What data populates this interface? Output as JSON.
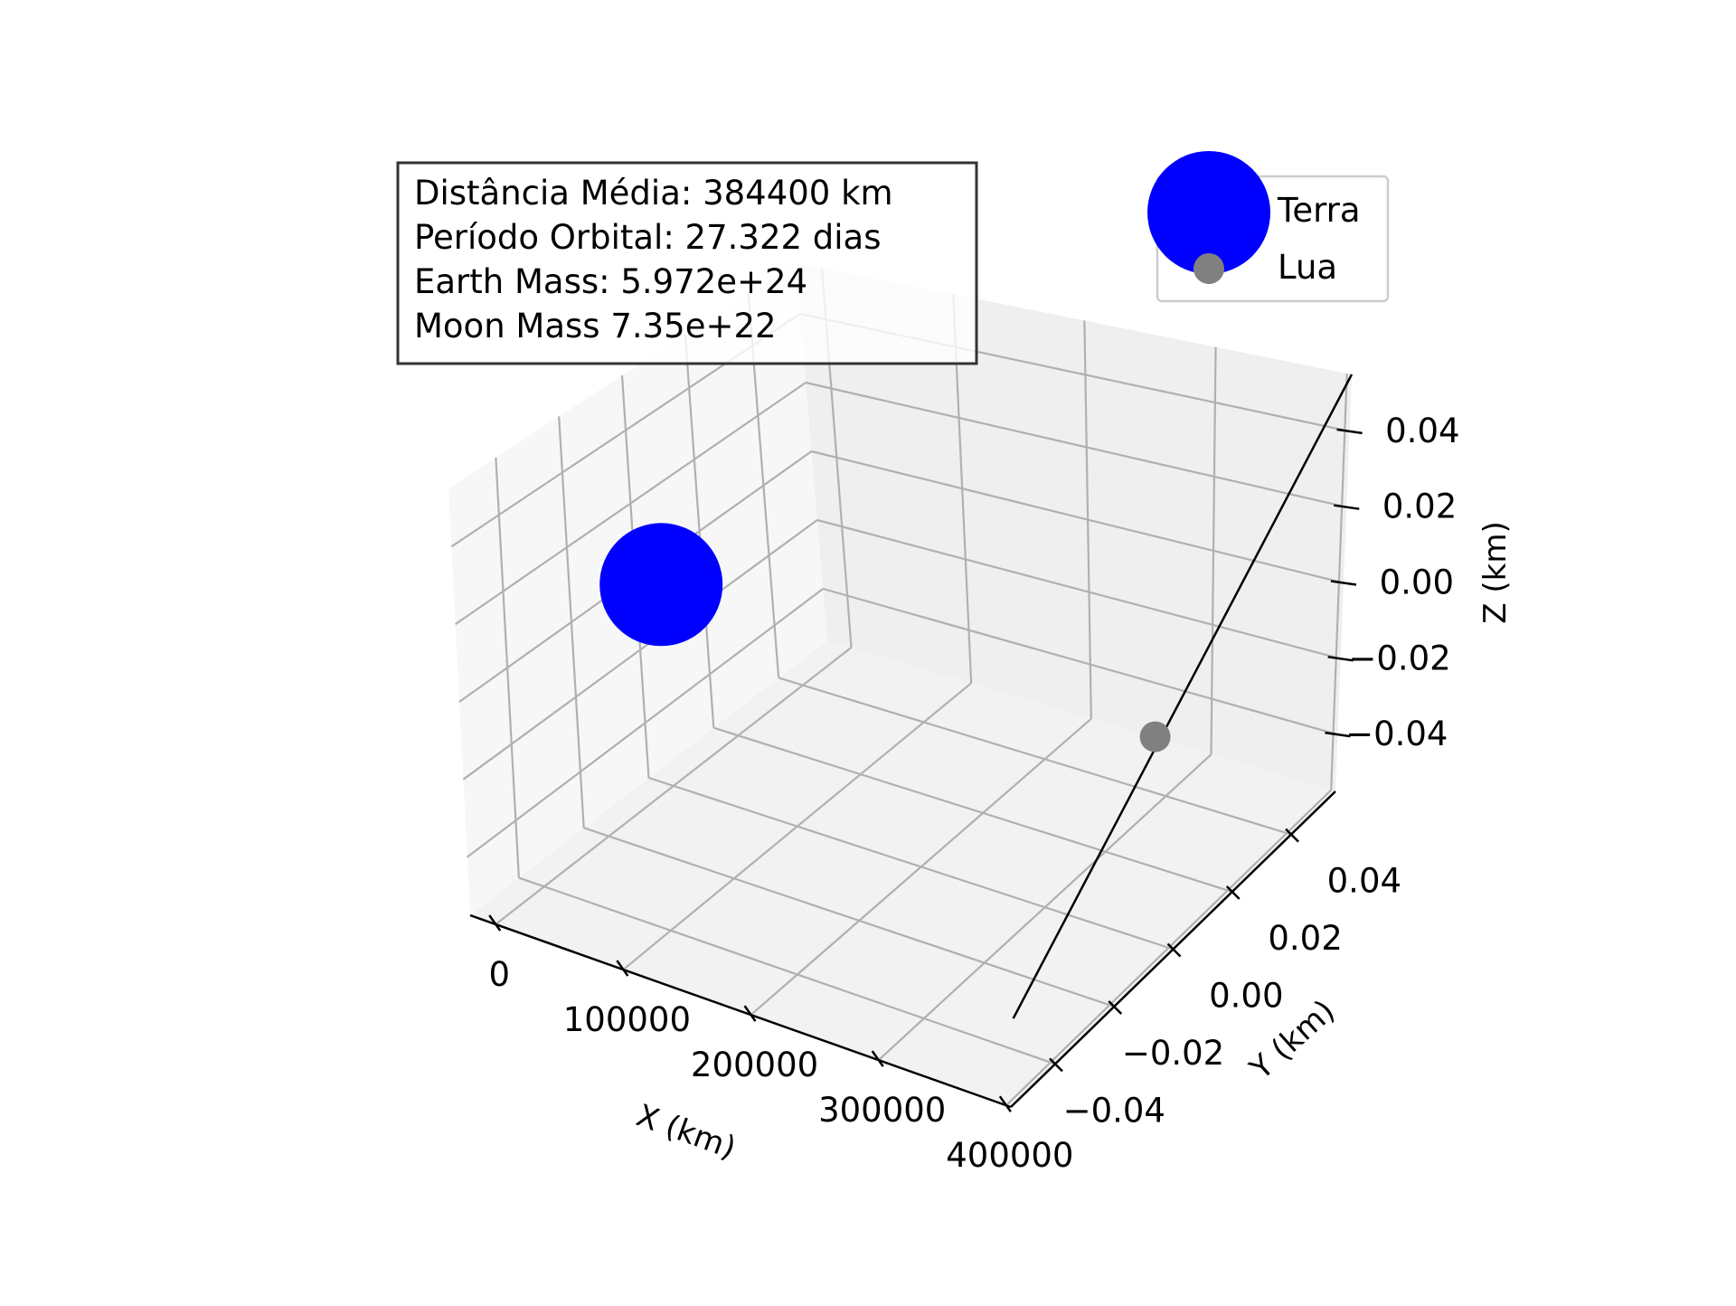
{
  "chart_data": {
    "type": "scatter",
    "projection": "3d",
    "xlabel": "X (km)",
    "ylabel": "Y (km)",
    "zlabel": "Z (km)",
    "xlim": [
      -20000,
      403640
    ],
    "ylim": [
      -0.055,
      0.055
    ],
    "zlim": [
      -0.055,
      0.055
    ],
    "x_ticks": [
      0,
      100000,
      200000,
      300000,
      400000
    ],
    "y_ticks": [
      -0.04,
      -0.02,
      0.0,
      0.02,
      0.04
    ],
    "z_ticks": [
      -0.04,
      -0.02,
      0.0,
      0.02,
      0.04
    ],
    "x_tick_labels": [
      "0",
      "100000",
      "200000",
      "300000",
      "400000"
    ],
    "y_tick_labels": [
      "−0.04",
      "−0.02",
      "0.00",
      "0.02",
      "0.04"
    ],
    "z_tick_labels": [
      "−0.04",
      "−0.02",
      "0.00",
      "0.02",
      "0.04"
    ],
    "grid": true,
    "series": [
      {
        "name": "Terra",
        "color": "#0000ff",
        "size": "large",
        "points": [
          {
            "x": 0,
            "y": 0,
            "z": 0
          }
        ]
      },
      {
        "name": "Lua",
        "color": "#808080",
        "size": "small",
        "points": [
          {
            "x": 384400,
            "y": 0,
            "z": 0
          }
        ]
      }
    ],
    "legend_position": "upper-right",
    "info_box": {
      "lines": [
        "Distância Média: 384400 km",
        "Período Orbital: 27.322 dias",
        "Earth Mass: 5.972e+24",
        "Moon Mass 7.35e+22"
      ],
      "position": "upper-left"
    }
  }
}
